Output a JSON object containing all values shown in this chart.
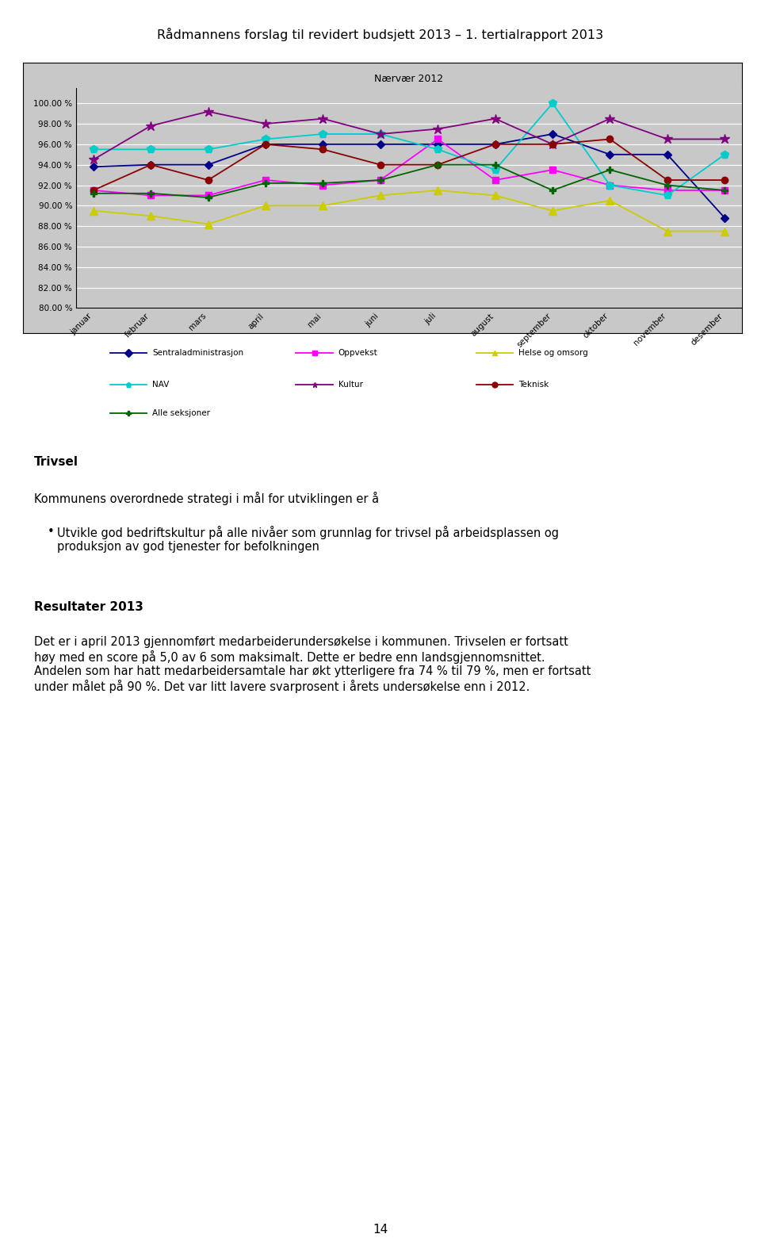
{
  "title_main": "Rådmannens forslag til revidert budsjett 2013 – 1. tertialrapport 2013",
  "chart_title": "Nærvær 2012",
  "months": [
    "januar",
    "februar",
    "mars",
    "april",
    "mai",
    "juni",
    "juli",
    "august",
    "september",
    "oktober",
    "november",
    "desember"
  ],
  "ylim": [
    80.0,
    101.5
  ],
  "yticks": [
    80.0,
    82.0,
    84.0,
    86.0,
    88.0,
    90.0,
    92.0,
    94.0,
    96.0,
    98.0,
    100.0
  ],
  "series": {
    "Sentraladministrasjon": {
      "color": "#00008B",
      "marker": "D",
      "markersize": 5,
      "values": [
        93.8,
        94.0,
        94.0,
        96.0,
        96.0,
        96.0,
        96.0,
        96.0,
        97.0,
        95.0,
        95.0,
        88.8
      ]
    },
    "Oppvekst": {
      "color": "#FF00FF",
      "marker": "s",
      "markersize": 6,
      "values": [
        91.5,
        91.0,
        91.0,
        92.5,
        92.0,
        92.5,
        96.5,
        92.5,
        93.5,
        92.0,
        91.5,
        91.5
      ]
    },
    "Helse og omsorg": {
      "color": "#CCCC00",
      "marker": "^",
      "markersize": 7,
      "values": [
        89.5,
        89.0,
        88.2,
        90.0,
        90.0,
        91.0,
        91.5,
        91.0,
        89.5,
        90.5,
        87.5,
        87.5
      ]
    },
    "NAV": {
      "color": "#00CCCC",
      "marker": "p",
      "markersize": 7,
      "values": [
        95.5,
        95.5,
        95.5,
        96.5,
        97.0,
        97.0,
        95.5,
        93.5,
        100.0,
        92.0,
        91.0,
        95.0
      ]
    },
    "Kultur": {
      "color": "#800080",
      "marker": "*",
      "markersize": 9,
      "values": [
        94.5,
        97.8,
        99.2,
        98.0,
        98.5,
        97.0,
        97.5,
        98.5,
        96.0,
        98.5,
        96.5,
        96.5
      ]
    },
    "Teknisk": {
      "color": "#8B0000",
      "marker": "o",
      "markersize": 6,
      "values": [
        91.5,
        94.0,
        92.5,
        96.0,
        95.5,
        94.0,
        94.0,
        96.0,
        96.0,
        96.5,
        92.5,
        92.5
      ]
    },
    "Alle seksjoner": {
      "color": "#006400",
      "marker": "P",
      "markersize": 6,
      "values": [
        91.2,
        91.2,
        90.8,
        92.2,
        92.2,
        92.5,
        94.0,
        94.0,
        91.5,
        93.5,
        92.0,
        91.5
      ]
    }
  },
  "legend_order": [
    "Sentraladministrasjon",
    "Oppvekst",
    "Helse og omsorg",
    "NAV",
    "Kultur",
    "Teknisk",
    "Alle seksjoner"
  ],
  "page_number": "14"
}
